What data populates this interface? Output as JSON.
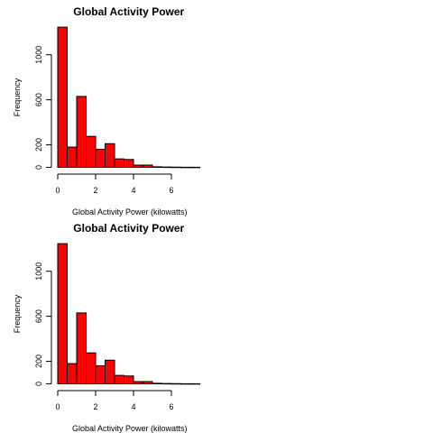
{
  "chart_data": [
    {
      "type": "bar",
      "title": "Global Activity Power",
      "xlabel": "Global Activity Power (kilowatts)",
      "ylabel": "Frequency",
      "bin_edges": [
        0,
        0.5,
        1.0,
        1.5,
        2.0,
        2.5,
        3.0,
        3.5,
        4.0,
        4.5,
        5.0,
        5.5,
        6.0,
        6.5,
        7.0,
        7.5
      ],
      "values": [
        1245,
        180,
        630,
        275,
        160,
        210,
        75,
        70,
        20,
        20,
        5,
        3,
        2,
        1,
        1
      ],
      "bar_color": "#FF0000",
      "xlim": [
        0,
        7.5
      ],
      "ylim": [
        0,
        1250
      ],
      "xticks": [
        "0",
        "2",
        "4",
        "6"
      ],
      "yticks": [
        "0",
        "200",
        "600",
        "1000"
      ],
      "grid": false
    },
    {
      "type": "bar",
      "title": "Global Activity Power",
      "xlabel": "Global Activity Power (kilowatts)",
      "ylabel": "Frequency",
      "bin_edges": [
        0,
        0.5,
        1.0,
        1.5,
        2.0,
        2.5,
        3.0,
        3.5,
        4.0,
        4.5,
        5.0,
        5.5,
        6.0,
        6.5,
        7.0,
        7.5
      ],
      "values": [
        1245,
        180,
        630,
        275,
        160,
        210,
        75,
        70,
        20,
        20,
        5,
        3,
        2,
        1,
        1
      ],
      "bar_color": "#FF0000",
      "xlim": [
        0,
        7.5
      ],
      "ylim": [
        0,
        1250
      ],
      "xticks": [
        "0",
        "2",
        "4",
        "6"
      ],
      "yticks": [
        "0",
        "200",
        "600",
        "1000"
      ],
      "grid": false
    }
  ]
}
